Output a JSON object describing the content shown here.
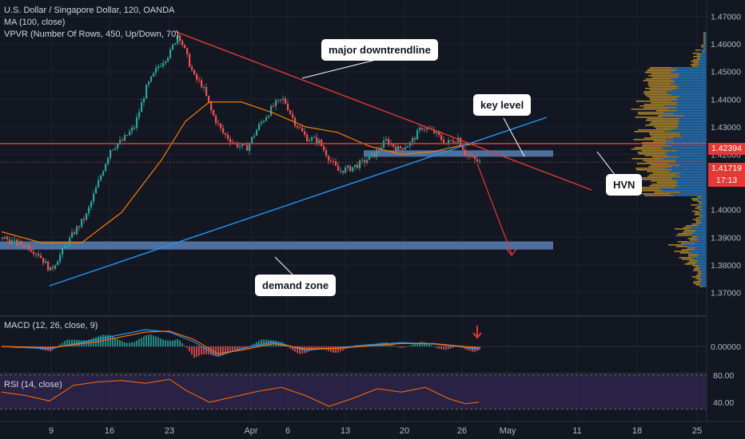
{
  "header": {
    "symbol_line": "U.S. Dollar / Singapore Dollar, 120, OANDA",
    "ma_label": "MA (100, close)",
    "vpvr_label": "VPVR (Number Of Rows, 450, Up/Down, 70)",
    "macd_label": "MACD (12, 26, close, 9)",
    "rsi_label": "RSI (14, close)"
  },
  "annotations": {
    "downtrend": "major downtrendline",
    "key_level": "key level",
    "hvn": "HVN",
    "demand": "demand zone"
  },
  "price_tags": {
    "level": "1.42394",
    "last": "1.41719",
    "countdown": "17:13"
  },
  "colors": {
    "background": "#131722",
    "up_candle": "#26a69a",
    "down_candle": "#ef5350",
    "ma": "#f57c00",
    "trendline_blue": "#2196f3",
    "trendline_red": "#e53935",
    "zone": "#5b7fb5",
    "vpvr_up": "#2a7fc9",
    "vpvr_down": "#c99a2e",
    "rsi_band": "#3b2a5e"
  },
  "chart_data": [
    {
      "type": "line",
      "title": "U.S. Dollar / Singapore Dollar, 120, OANDA",
      "x_ticks": [
        "9",
        "16",
        "23",
        "Apr",
        "6",
        "13",
        "20",
        "26",
        "May",
        "11",
        "18",
        "25"
      ],
      "y_ticks": [
        1.37,
        1.38,
        1.39,
        1.4,
        1.41,
        1.42,
        1.43,
        1.44,
        1.45,
        1.46,
        1.47
      ],
      "ylim": [
        1.365,
        1.475
      ],
      "series": [
        {
          "name": "",
          "points": [
            [
              0,
              1.39
            ],
            [
              15,
              1.388
            ],
            [
              30,
              1.387
            ],
            [
              45,
              1.384
            ],
            [
              60,
              1.378
            ],
            [
              75,
              1.385
            ],
            [
              90,
              1.392
            ],
            [
              105,
              1.398
            ],
            [
              120,
              1.41
            ],
            [
              135,
              1.422
            ],
            [
              150,
              1.425
            ],
            [
              165,
              1.43
            ],
            [
              180,
              1.444
            ],
            [
              195,
              1.452
            ],
            [
              210,
              1.457
            ],
            [
              220,
              1.464
            ],
            [
              230,
              1.456
            ],
            [
              240,
              1.448
            ],
            [
              250,
              1.445
            ],
            [
              262,
              1.435
            ],
            [
              275,
              1.428
            ],
            [
              290,
              1.424
            ],
            [
              305,
              1.422
            ],
            [
              320,
              1.43
            ],
            [
              340,
              1.438
            ],
            [
              352,
              1.44
            ],
            [
              365,
              1.432
            ],
            [
              380,
              1.426
            ],
            [
              395,
              1.425
            ],
            [
              410,
              1.418
            ],
            [
              420,
              1.414
            ],
            [
              435,
              1.415
            ],
            [
              450,
              1.417
            ],
            [
              465,
              1.42
            ],
            [
              480,
              1.425
            ],
            [
              495,
              1.422
            ],
            [
              510,
              1.424
            ],
            [
              525,
              1.43
            ],
            [
              540,
              1.428
            ],
            [
              555,
              1.424
            ],
            [
              570,
              1.426
            ],
            [
              580,
              1.42
            ],
            [
              590,
              1.418
            ],
            [
              597,
              1.4172
            ]
          ]
        }
      ]
    },
    {
      "type": "line",
      "title": "MA (100, close)",
      "series": [
        {
          "name": "",
          "points": [
            [
              0,
              1.392
            ],
            [
              50,
              1.388
            ],
            [
              100,
              1.388
            ],
            [
              150,
              1.399
            ],
            [
              200,
              1.418
            ],
            [
              230,
              1.432
            ],
            [
              260,
              1.439
            ],
            [
              300,
              1.439
            ],
            [
              340,
              1.435
            ],
            [
              380,
              1.43
            ],
            [
              420,
              1.428
            ],
            [
              460,
              1.423
            ],
            [
              500,
              1.42
            ],
            [
              540,
              1.421
            ],
            [
              570,
              1.423
            ],
            [
              597,
              1.424
            ]
          ]
        }
      ]
    },
    {
      "type": "line",
      "title": "MACD (12, 26, close, 9)",
      "y_ticks": [
        0.0
      ],
      "series": [
        {
          "name": "",
          "points": [
            [
              0,
              0.0
            ],
            [
              60,
              -0.0005
            ],
            [
              120,
              0.0015
            ],
            [
              180,
              0.0035
            ],
            [
              210,
              0.003
            ],
            [
              240,
              0.001
            ],
            [
              270,
              -0.002
            ],
            [
              300,
              -0.0005
            ],
            [
              340,
              0.001
            ],
            [
              380,
              -0.0008
            ],
            [
              420,
              -0.0003
            ],
            [
              460,
              0.0003
            ],
            [
              500,
              0.0008
            ],
            [
              540,
              0.0005
            ],
            [
              570,
              0.0
            ],
            [
              597,
              -0.0006
            ]
          ]
        },
        {
          "name": "",
          "points": [
            [
              0,
              0.0
            ],
            [
              60,
              -0.0003
            ],
            [
              120,
              0.001
            ],
            [
              180,
              0.003
            ],
            [
              210,
              0.0032
            ],
            [
              240,
              0.0015
            ],
            [
              270,
              -0.0015
            ],
            [
              300,
              -0.0008
            ],
            [
              340,
              0.0006
            ],
            [
              380,
              -0.0005
            ],
            [
              420,
              -0.0004
            ],
            [
              460,
              0.0001
            ],
            [
              500,
              0.0006
            ],
            [
              540,
              0.0006
            ],
            [
              570,
              0.0001
            ],
            [
              597,
              -0.0003
            ]
          ]
        }
      ]
    },
    {
      "type": "line",
      "title": "RSI (14, close)",
      "y_ticks": [
        40.0,
        80.0
      ],
      "series": [
        {
          "name": "",
          "points": [
            [
              0,
              55
            ],
            [
              30,
              50
            ],
            [
              60,
              42
            ],
            [
              90,
              65
            ],
            [
              120,
              70
            ],
            [
              150,
              72
            ],
            [
              180,
              68
            ],
            [
              210,
              74
            ],
            [
              230,
              58
            ],
            [
              260,
              40
            ],
            [
              290,
              48
            ],
            [
              320,
              56
            ],
            [
              350,
              62
            ],
            [
              380,
              50
            ],
            [
              410,
              34
            ],
            [
              440,
              46
            ],
            [
              470,
              60
            ],
            [
              500,
              55
            ],
            [
              530,
              62
            ],
            [
              560,
              45
            ],
            [
              580,
              38
            ],
            [
              597,
              40
            ]
          ]
        }
      ]
    }
  ]
}
